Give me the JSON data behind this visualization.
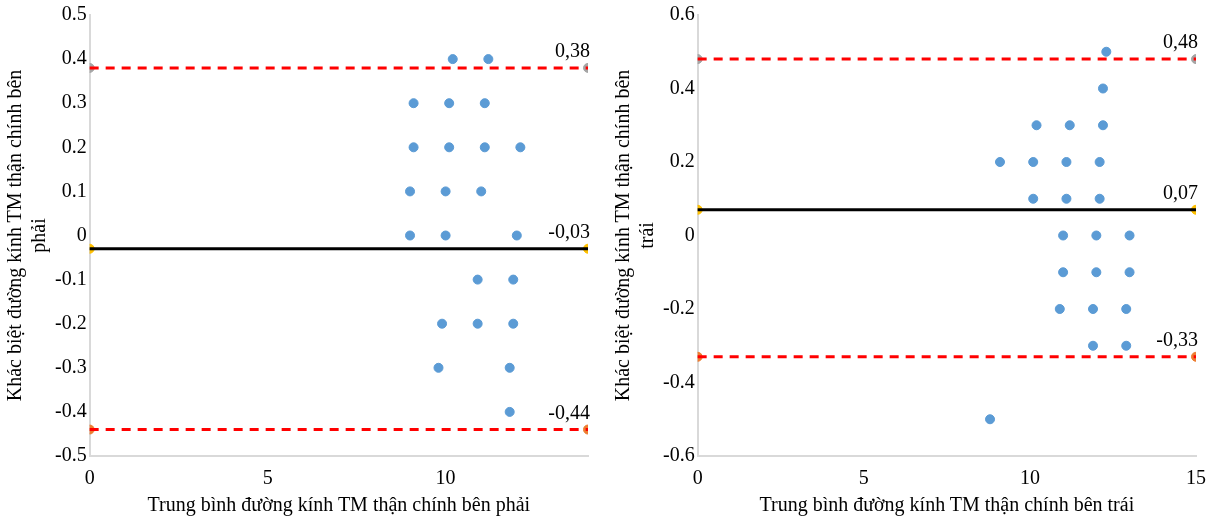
{
  "chart_data": [
    {
      "type": "scatter",
      "xlabel": "Trung bình đường kính TM thận chính bên phải",
      "ylabel": "Khác biệt đường kính TM thận chính bên phải",
      "xlim": [
        0,
        14
      ],
      "xticks": [
        0,
        5,
        10
      ],
      "ylim": [
        -0.5,
        0.5
      ],
      "yticks": [
        -0.5,
        -0.4,
        -0.3,
        -0.2,
        -0.1,
        0,
        0.1,
        0.2,
        0.3,
        0.4,
        0.5
      ],
      "grid": false,
      "legend": false,
      "marker": "circle",
      "ref_lines": [
        {
          "axis": "y",
          "value": 0.38,
          "label": "0,38",
          "color": "#ff0000",
          "line_style": "dashed"
        },
        {
          "axis": "y",
          "value": -0.03,
          "label": "-0,03",
          "color": "#000000",
          "line_style": "solid"
        },
        {
          "axis": "y",
          "value": -0.44,
          "label": "-0,44",
          "color": "#ff0000",
          "line_style": "dashed"
        }
      ],
      "series": [
        {
          "color": "#5b9bd5",
          "x": [
            10.2,
            11.2,
            9.1,
            10.1,
            11.1,
            9.1,
            10.1,
            11.1,
            12.1,
            9.0,
            10.0,
            11.0,
            9.0,
            10.0,
            12.0,
            10.9,
            11.9,
            9.9,
            10.9,
            11.9,
            9.8,
            11.8,
            11.8
          ],
          "values": [
            0.4,
            0.4,
            0.3,
            0.3,
            0.3,
            0.2,
            0.2,
            0.2,
            0.2,
            0.1,
            0.1,
            0.1,
            0,
            0,
            0,
            -0.1,
            -0.1,
            -0.2,
            -0.2,
            -0.2,
            -0.3,
            -0.3,
            -0.4
          ]
        },
        {
          "color": "#a5a5a5",
          "x": [
            0,
            14
          ],
          "values": [
            0.38,
            0.38
          ]
        },
        {
          "color": "#ffc000",
          "x": [
            0,
            14
          ],
          "values": [
            -0.03,
            -0.03
          ]
        },
        {
          "color": "#ed7d31",
          "x": [
            0,
            14
          ],
          "values": [
            -0.44,
            -0.44
          ]
        }
      ]
    },
    {
      "type": "scatter",
      "xlabel": "Trung bình đường kính TM thận chính bên trái",
      "ylabel": "Khác biệt đường kính TM thận chính bên trái",
      "xlim": [
        0,
        15
      ],
      "xticks": [
        0,
        5,
        10,
        15
      ],
      "ylim": [
        -0.6,
        0.6
      ],
      "yticks": [
        -0.6,
        -0.4,
        -0.2,
        0,
        0.2,
        0.4,
        0.6
      ],
      "grid": false,
      "legend": false,
      "marker": "circle",
      "ref_lines": [
        {
          "axis": "y",
          "value": 0.48,
          "label": "0,48",
          "color": "#ff0000",
          "line_style": "dashed"
        },
        {
          "axis": "y",
          "value": 0.07,
          "label": "0,07",
          "color": "#000000",
          "line_style": "solid"
        },
        {
          "axis": "y",
          "value": -0.33,
          "label": "-0,33",
          "color": "#ff0000",
          "line_style": "dashed"
        }
      ],
      "series": [
        {
          "color": "#5b9bd5",
          "x": [
            12.3,
            12.2,
            10.2,
            11.2,
            12.2,
            9.1,
            10.1,
            11.1,
            12.1,
            10.1,
            11.1,
            12.1,
            11.0,
            12.0,
            13.0,
            11.0,
            12.0,
            13.0,
            10.9,
            11.9,
            12.9,
            11.9,
            12.9,
            8.8
          ],
          "values": [
            0.5,
            0.4,
            0.3,
            0.3,
            0.3,
            0.2,
            0.2,
            0.2,
            0.2,
            0.1,
            0.1,
            0.1,
            0,
            0,
            0,
            -0.1,
            -0.1,
            -0.1,
            -0.2,
            -0.2,
            -0.2,
            -0.3,
            -0.3,
            -0.5
          ]
        },
        {
          "color": "#a5a5a5",
          "x": [
            0,
            15
          ],
          "values": [
            0.48,
            0.48
          ]
        },
        {
          "color": "#ffc000",
          "x": [
            0,
            15
          ],
          "values": [
            0.07,
            0.07
          ]
        },
        {
          "color": "#ed7d31",
          "x": [
            0,
            15
          ],
          "values": [
            -0.33,
            -0.33
          ]
        }
      ]
    }
  ]
}
